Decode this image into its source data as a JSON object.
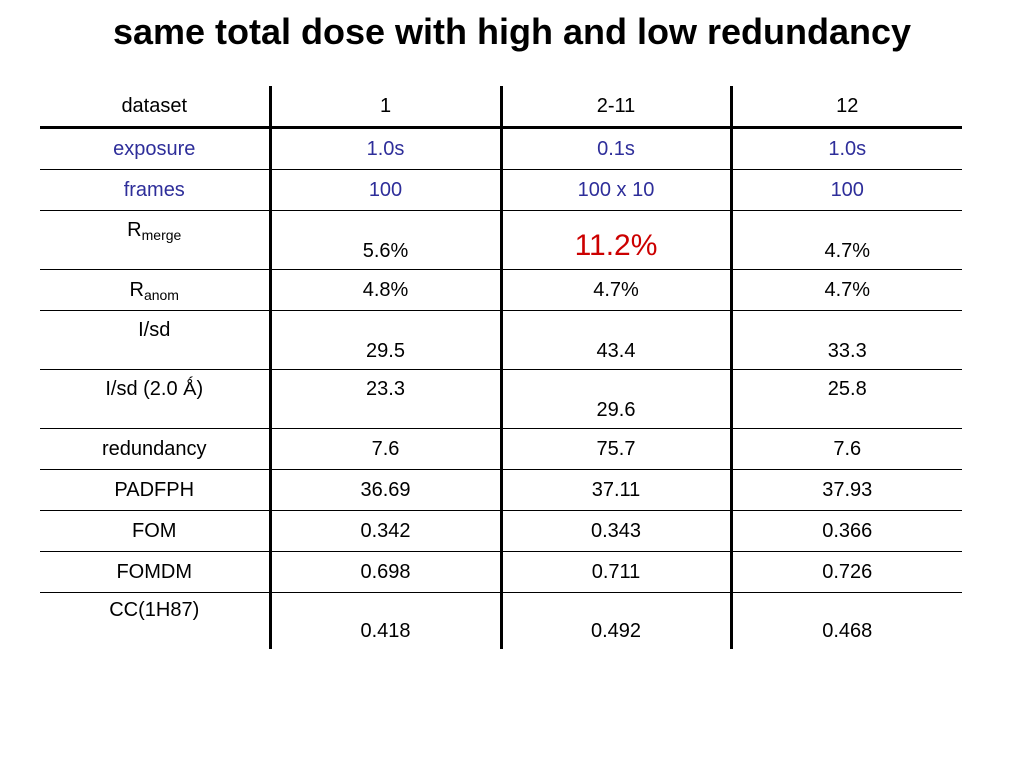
{
  "title": "same total dose with high and low redundancy",
  "table": {
    "headers": [
      "dataset",
      "1",
      "2-11",
      "12"
    ],
    "rows": [
      {
        "label": "exposure",
        "values": [
          "1.0s",
          "0.1s",
          "1.0s"
        ]
      },
      {
        "label": "frames",
        "values": [
          "100",
          "100 x 10",
          "100"
        ]
      },
      {
        "label_main": "R",
        "label_sub": "merge",
        "values": [
          "5.6%",
          "11.2%",
          "4.7%"
        ]
      },
      {
        "label_main": "R",
        "label_sub": "anom",
        "values": [
          "4.8%",
          "4.7%",
          "4.7%"
        ]
      },
      {
        "label": "I/sd",
        "values": [
          "29.5",
          "43.4",
          "33.3"
        ]
      },
      {
        "label": "I/sd (2.0 Ǻ)",
        "values": [
          "23.3",
          "29.6",
          "25.8"
        ]
      },
      {
        "label": "redundancy",
        "values": [
          "7.6",
          "75.7",
          "7.6"
        ]
      },
      {
        "label": "PADFPH",
        "values": [
          "36.69",
          "37.11",
          "37.93"
        ]
      },
      {
        "label": "FOM",
        "values": [
          "0.342",
          "0.343",
          "0.366"
        ]
      },
      {
        "label": "FOMDM",
        "values": [
          "0.698",
          "0.711",
          "0.726"
        ]
      },
      {
        "label": "CC(1H87)",
        "values": [
          "0.418",
          "0.492",
          "0.468"
        ]
      }
    ]
  },
  "colors": {
    "highlight_label": "#2e2e9a",
    "highlight_value": "#cc0000"
  }
}
